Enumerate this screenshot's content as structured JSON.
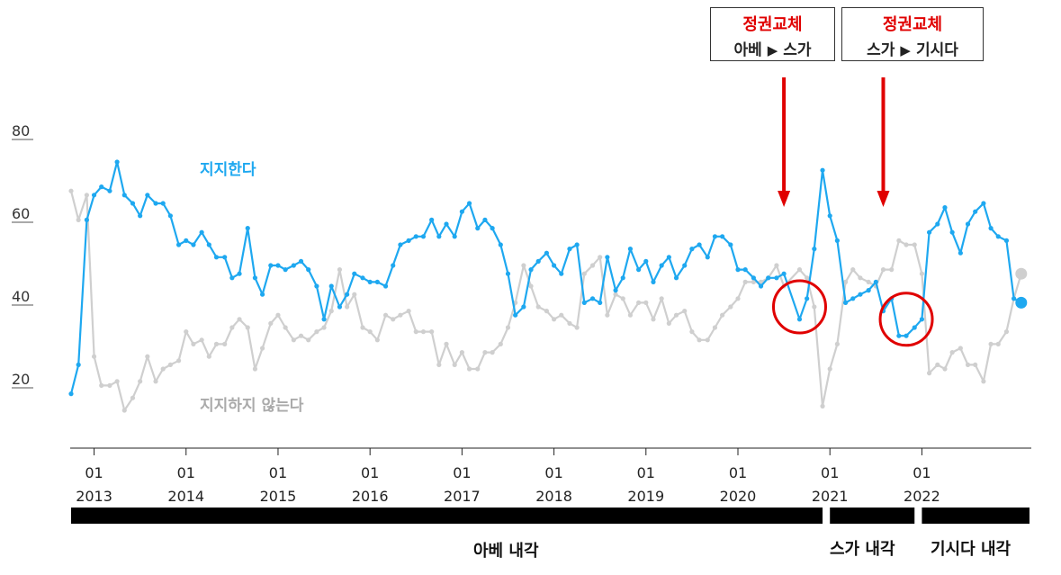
{
  "annotations": [
    {
      "title": "정권교체",
      "from": "아베",
      "to": "스가"
    },
    {
      "title": "정권교체",
      "from": "스가",
      "to": "기시다"
    }
  ],
  "cabinets": [
    "아베 내각",
    "스가 내각",
    "기시다 내각"
  ],
  "colors": {
    "support": "#1ea8f0",
    "nonsupport": "#cfcfcf",
    "annotation": "#e00000",
    "bars": "#000000"
  },
  "chart_data": {
    "type": "line",
    "ylim": [
      10,
      90
    ],
    "yticks": [
      20,
      40,
      60,
      80
    ],
    "xticks": [
      {
        "month": "01",
        "year": "2013"
      },
      {
        "month": "01",
        "year": "2014"
      },
      {
        "month": "01",
        "year": "2015"
      },
      {
        "month": "01",
        "year": "2016"
      },
      {
        "month": "01",
        "year": "2017"
      },
      {
        "month": "01",
        "year": "2018"
      },
      {
        "month": "01",
        "year": "2019"
      },
      {
        "month": "01",
        "year": "2020"
      },
      {
        "month": "01",
        "year": "2021"
      },
      {
        "month": "01",
        "year": "2022"
      }
    ],
    "series": [
      {
        "name": "지지한다",
        "points": [
          [
            2012.75,
            19
          ],
          [
            2012.83,
            26
          ],
          [
            2012.92,
            61
          ],
          [
            2013.0,
            67
          ],
          [
            2013.08,
            69
          ],
          [
            2013.17,
            68
          ],
          [
            2013.25,
            75
          ],
          [
            2013.33,
            67
          ],
          [
            2013.42,
            65
          ],
          [
            2013.5,
            62
          ],
          [
            2013.58,
            67
          ],
          [
            2013.67,
            65
          ],
          [
            2013.75,
            65
          ],
          [
            2013.83,
            62
          ],
          [
            2013.92,
            55
          ],
          [
            2014.0,
            56
          ],
          [
            2014.08,
            55
          ],
          [
            2014.17,
            58
          ],
          [
            2014.25,
            55
          ],
          [
            2014.33,
            52
          ],
          [
            2014.42,
            52
          ],
          [
            2014.5,
            47
          ],
          [
            2014.58,
            48
          ],
          [
            2014.67,
            59
          ],
          [
            2014.75,
            47
          ],
          [
            2014.83,
            43
          ],
          [
            2014.92,
            50
          ],
          [
            2015.0,
            50
          ],
          [
            2015.08,
            49
          ],
          [
            2015.17,
            50
          ],
          [
            2015.25,
            51
          ],
          [
            2015.33,
            49
          ],
          [
            2015.42,
            45
          ],
          [
            2015.5,
            37
          ],
          [
            2015.58,
            45
          ],
          [
            2015.67,
            40
          ],
          [
            2015.75,
            43
          ],
          [
            2015.83,
            48
          ],
          [
            2015.92,
            47
          ],
          [
            2016.0,
            46
          ],
          [
            2016.08,
            46
          ],
          [
            2016.17,
            45
          ],
          [
            2016.25,
            50
          ],
          [
            2016.33,
            55
          ],
          [
            2016.42,
            56
          ],
          [
            2016.5,
            57
          ],
          [
            2016.58,
            57
          ],
          [
            2016.67,
            61
          ],
          [
            2016.75,
            57
          ],
          [
            2016.83,
            60
          ],
          [
            2016.92,
            57
          ],
          [
            2017.0,
            63
          ],
          [
            2017.08,
            65
          ],
          [
            2017.17,
            59
          ],
          [
            2017.25,
            61
          ],
          [
            2017.33,
            59
          ],
          [
            2017.42,
            55
          ],
          [
            2017.5,
            48
          ],
          [
            2017.58,
            38
          ],
          [
            2017.67,
            40
          ],
          [
            2017.75,
            49
          ],
          [
            2017.83,
            51
          ],
          [
            2017.92,
            53
          ],
          [
            2018.0,
            50
          ],
          [
            2018.08,
            48
          ],
          [
            2018.17,
            54
          ],
          [
            2018.25,
            55
          ],
          [
            2018.33,
            41
          ],
          [
            2018.42,
            42
          ],
          [
            2018.5,
            41
          ],
          [
            2018.58,
            52
          ],
          [
            2018.67,
            44
          ],
          [
            2018.75,
            47
          ],
          [
            2018.83,
            54
          ],
          [
            2018.92,
            49
          ],
          [
            2019.0,
            51
          ],
          [
            2019.08,
            46
          ],
          [
            2019.17,
            50
          ],
          [
            2019.25,
            52
          ],
          [
            2019.33,
            47
          ],
          [
            2019.42,
            50
          ],
          [
            2019.5,
            54
          ],
          [
            2019.58,
            55
          ],
          [
            2019.67,
            52
          ],
          [
            2019.75,
            57
          ],
          [
            2019.83,
            57
          ],
          [
            2019.92,
            55
          ],
          [
            2020.0,
            49
          ],
          [
            2020.08,
            49
          ],
          [
            2020.17,
            47
          ],
          [
            2020.25,
            45
          ],
          [
            2020.33,
            47
          ],
          [
            2020.42,
            47
          ],
          [
            2020.5,
            48
          ],
          [
            2020.67,
            37
          ],
          [
            2020.75,
            42
          ],
          [
            2020.83,
            54
          ],
          [
            2020.92,
            73
          ],
          [
            2021.0,
            62
          ],
          [
            2021.08,
            56
          ],
          [
            2021.17,
            41
          ],
          [
            2021.25,
            42
          ],
          [
            2021.33,
            43
          ],
          [
            2021.42,
            44
          ],
          [
            2021.5,
            46
          ],
          [
            2021.58,
            39
          ],
          [
            2021.67,
            42
          ],
          [
            2021.75,
            33
          ],
          [
            2021.83,
            33
          ],
          [
            2021.92,
            35
          ],
          [
            2022.0,
            37
          ],
          [
            2022.08,
            58
          ],
          [
            2022.17,
            60
          ],
          [
            2022.25,
            64
          ],
          [
            2022.33,
            58
          ],
          [
            2022.42,
            53
          ],
          [
            2022.5,
            60
          ],
          [
            2022.58,
            63
          ],
          [
            2022.67,
            65
          ],
          [
            2022.75,
            59
          ],
          [
            2022.83,
            57
          ],
          [
            2022.92,
            56
          ],
          [
            2023.0,
            42
          ],
          [
            2023.08,
            41
          ]
        ]
      },
      {
        "name": "지지하지 않는다",
        "points": [
          [
            2012.75,
            68
          ],
          [
            2012.83,
            61
          ],
          [
            2012.92,
            67
          ],
          [
            2013.0,
            28
          ],
          [
            2013.08,
            21
          ],
          [
            2013.17,
            21
          ],
          [
            2013.25,
            22
          ],
          [
            2013.33,
            15
          ],
          [
            2013.42,
            18
          ],
          [
            2013.5,
            22
          ],
          [
            2013.58,
            28
          ],
          [
            2013.67,
            22
          ],
          [
            2013.75,
            25
          ],
          [
            2013.83,
            26
          ],
          [
            2013.92,
            27
          ],
          [
            2014.0,
            34
          ],
          [
            2014.08,
            31
          ],
          [
            2014.17,
            32
          ],
          [
            2014.25,
            28
          ],
          [
            2014.33,
            31
          ],
          [
            2014.42,
            31
          ],
          [
            2014.5,
            35
          ],
          [
            2014.58,
            37
          ],
          [
            2014.67,
            35
          ],
          [
            2014.75,
            25
          ],
          [
            2014.83,
            30
          ],
          [
            2014.92,
            36
          ],
          [
            2015.0,
            38
          ],
          [
            2015.08,
            35
          ],
          [
            2015.17,
            32
          ],
          [
            2015.25,
            33
          ],
          [
            2015.33,
            32
          ],
          [
            2015.42,
            34
          ],
          [
            2015.5,
            35
          ],
          [
            2015.58,
            39
          ],
          [
            2015.67,
            49
          ],
          [
            2015.75,
            40
          ],
          [
            2015.83,
            43
          ],
          [
            2015.92,
            35
          ],
          [
            2016.0,
            34
          ],
          [
            2016.08,
            32
          ],
          [
            2016.17,
            38
          ],
          [
            2016.25,
            37
          ],
          [
            2016.33,
            38
          ],
          [
            2016.42,
            39
          ],
          [
            2016.5,
            34
          ],
          [
            2016.58,
            34
          ],
          [
            2016.67,
            34
          ],
          [
            2016.75,
            26
          ],
          [
            2016.83,
            31
          ],
          [
            2016.92,
            26
          ],
          [
            2017.0,
            29
          ],
          [
            2017.08,
            25
          ],
          [
            2017.17,
            25
          ],
          [
            2017.25,
            29
          ],
          [
            2017.33,
            29
          ],
          [
            2017.42,
            31
          ],
          [
            2017.5,
            35
          ],
          [
            2017.58,
            41
          ],
          [
            2017.67,
            50
          ],
          [
            2017.75,
            45
          ],
          [
            2017.83,
            40
          ],
          [
            2017.92,
            39
          ],
          [
            2018.0,
            37
          ],
          [
            2018.08,
            38
          ],
          [
            2018.17,
            36
          ],
          [
            2018.25,
            35
          ],
          [
            2018.33,
            48
          ],
          [
            2018.42,
            50
          ],
          [
            2018.5,
            52
          ],
          [
            2018.58,
            38
          ],
          [
            2018.67,
            43
          ],
          [
            2018.75,
            42
          ],
          [
            2018.83,
            38
          ],
          [
            2018.92,
            41
          ],
          [
            2019.0,
            41
          ],
          [
            2019.08,
            37
          ],
          [
            2019.17,
            42
          ],
          [
            2019.25,
            36
          ],
          [
            2019.33,
            38
          ],
          [
            2019.42,
            39
          ],
          [
            2019.5,
            34
          ],
          [
            2019.58,
            32
          ],
          [
            2019.67,
            32
          ],
          [
            2019.75,
            35
          ],
          [
            2019.83,
            38
          ],
          [
            2019.92,
            40
          ],
          [
            2020.0,
            42
          ],
          [
            2020.08,
            46
          ],
          [
            2020.17,
            46
          ],
          [
            2020.25,
            46
          ],
          [
            2020.33,
            47
          ],
          [
            2020.42,
            50
          ],
          [
            2020.5,
            45
          ],
          [
            2020.67,
            49
          ],
          [
            2020.75,
            47
          ],
          [
            2020.83,
            40
          ],
          [
            2020.92,
            16
          ],
          [
            2021.0,
            25
          ],
          [
            2021.08,
            31
          ],
          [
            2021.17,
            46
          ],
          [
            2021.25,
            49
          ],
          [
            2021.33,
            47
          ],
          [
            2021.42,
            46
          ],
          [
            2021.5,
            45
          ],
          [
            2021.58,
            49
          ],
          [
            2021.67,
            49
          ],
          [
            2021.75,
            56
          ],
          [
            2021.83,
            55
          ],
          [
            2021.92,
            55
          ],
          [
            2022.0,
            48
          ],
          [
            2022.08,
            24
          ],
          [
            2022.17,
            26
          ],
          [
            2022.25,
            25
          ],
          [
            2022.33,
            29
          ],
          [
            2022.42,
            30
          ],
          [
            2022.5,
            26
          ],
          [
            2022.58,
            26
          ],
          [
            2022.67,
            22
          ],
          [
            2022.75,
            31
          ],
          [
            2022.83,
            31
          ],
          [
            2022.92,
            34
          ],
          [
            2023.0,
            42
          ],
          [
            2023.08,
            48
          ]
        ]
      }
    ],
    "highlights": [
      [
        2020.67,
        40
      ],
      [
        2021.83,
        37
      ]
    ],
    "arrows_x": [
      2020.5,
      2021.58
    ],
    "cabinet_periods": [
      [
        2012.75,
        2020.92
      ],
      [
        2021.0,
        2021.92
      ],
      [
        2022.0,
        2023.17
      ]
    ]
  }
}
